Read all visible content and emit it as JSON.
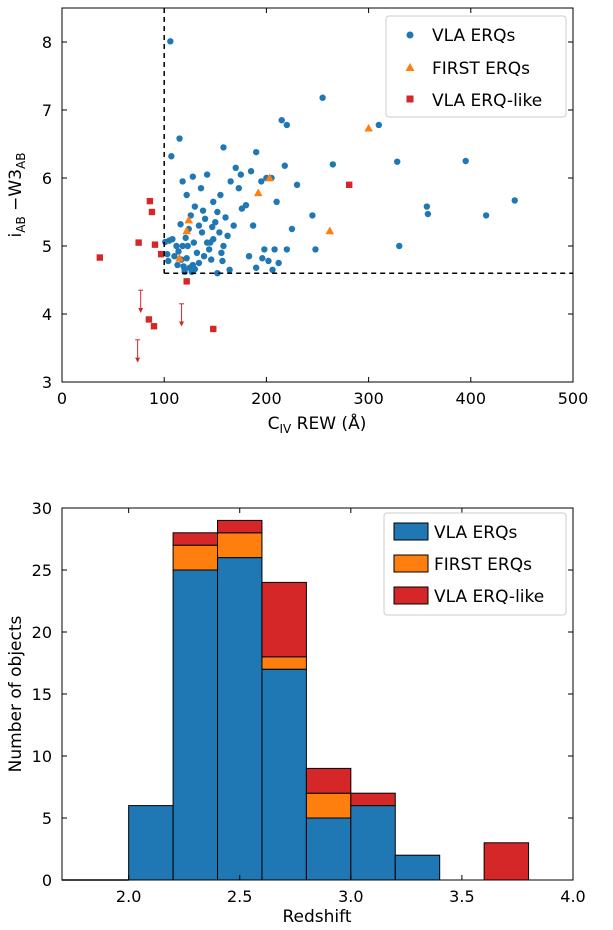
{
  "colors": {
    "vla": "#1f77b4",
    "first": "#ff7f0e",
    "erqlike": "#d62728",
    "cutoff": "#000000"
  },
  "top_legend": {
    "vla": "VLA ERQs",
    "first": "FIRST ERQs",
    "erqlike": "VLA ERQ-like"
  },
  "bottom_legend": {
    "vla": "VLA ERQs",
    "first": "FIRST ERQs",
    "erqlike": "VLA ERQ-like"
  },
  "chart_data": [
    {
      "type": "scatter",
      "xlabel": "C_IV REW (Å)",
      "ylabel": "i_AB − W3_AB",
      "xlim": [
        0,
        500
      ],
      "ylim": [
        3,
        8.5
      ],
      "x_ticks": [
        0,
        100,
        200,
        300,
        400,
        500
      ],
      "y_ticks": [
        3,
        4,
        5,
        6,
        7,
        8
      ],
      "grid": false,
      "legend_position": "top-right",
      "selection_cut": {
        "x_min": 100,
        "y_min": 4.6
      },
      "series": [
        {
          "name": "VLA ERQs",
          "marker": "circle",
          "color": "#1f77b4",
          "points": [
            [
              106,
              8.01
            ],
            [
              107,
              6.32
            ],
            [
              115,
              6.58
            ],
            [
              101,
              5.06
            ],
            [
              105,
              5.08
            ],
            [
              108,
              5.1
            ],
            [
              103,
              4.88
            ],
            [
              104,
              4.78
            ],
            [
              110,
              4.85
            ],
            [
              114,
              4.92
            ],
            [
              117,
              4.8
            ],
            [
              119,
              4.7
            ],
            [
              120,
              4.65
            ],
            [
              122,
              4.82
            ],
            [
              125,
              4.68
            ],
            [
              127,
              4.62
            ],
            [
              128,
              4.72
            ],
            [
              130,
              4.66
            ],
            [
              118,
              5.0
            ],
            [
              121,
              5.12
            ],
            [
              124,
              5.25
            ],
            [
              126,
              5.45
            ],
            [
              129,
              5.05
            ],
            [
              132,
              4.9
            ],
            [
              134,
              5.3
            ],
            [
              137,
              5.2
            ],
            [
              140,
              5.4
            ],
            [
              142,
              5.05
            ],
            [
              144,
              4.95
            ],
            [
              146,
              4.8
            ],
            [
              148,
              5.1
            ],
            [
              150,
              5.35
            ],
            [
              152,
              5.5
            ],
            [
              154,
              5.2
            ],
            [
              156,
              4.9
            ],
            [
              158,
              5.0
            ],
            [
              160,
              5.42
            ],
            [
              162,
              5.15
            ],
            [
              118,
              5.95
            ],
            [
              122,
              5.75
            ],
            [
              128,
              6.02
            ],
            [
              136,
              5.85
            ],
            [
              142,
              6.05
            ],
            [
              148,
              5.65
            ],
            [
              155,
              5.75
            ],
            [
              158,
              6.45
            ],
            [
              165,
              5.95
            ],
            [
              170,
              6.15
            ],
            [
              175,
              6.05
            ],
            [
              180,
              5.6
            ],
            [
              185,
              6.1
            ],
            [
              190,
              6.38
            ],
            [
              195,
              5.95
            ],
            [
              200,
              6.0
            ],
            [
              205,
              6.0
            ],
            [
              210,
              5.65
            ],
            [
              198,
              4.95
            ],
            [
              202,
              4.78
            ],
            [
              206,
              4.65
            ],
            [
              208,
              4.95
            ],
            [
              212,
              4.75
            ],
            [
              190,
              4.68
            ],
            [
              220,
              4.95
            ],
            [
              225,
              5.25
            ],
            [
              215,
              6.85
            ],
            [
              220,
              6.78
            ],
            [
              218,
              6.18
            ],
            [
              230,
              5.9
            ],
            [
              245,
              5.45
            ],
            [
              248,
              4.95
            ],
            [
              255,
              7.18
            ],
            [
              265,
              6.2
            ],
            [
              310,
              6.78
            ],
            [
              328,
              6.24
            ],
            [
              330,
              5.0
            ],
            [
              357,
              5.58
            ],
            [
              358,
              5.47
            ],
            [
              395,
              6.25
            ],
            [
              415,
              5.45
            ],
            [
              443,
              5.67
            ],
            [
              138,
              5.52
            ],
            [
              145,
              5.05
            ],
            [
              152,
              4.6
            ],
            [
              164,
              4.65
            ],
            [
              168,
              5.3
            ],
            [
              176,
              5.55
            ],
            [
              183,
              4.85
            ],
            [
              134,
              4.75
            ],
            [
              112,
              5.0
            ],
            [
              113,
              4.72
            ],
            [
              116,
              5.32
            ],
            [
              130,
              5.58
            ],
            [
              147,
              5.28
            ],
            [
              139,
              4.85
            ],
            [
              157,
              4.78
            ],
            [
              173,
              5.85
            ],
            [
              187,
              5.3
            ],
            [
              196,
              4.82
            ],
            [
              120,
              4.62
            ],
            [
              123,
              5.0
            ]
          ]
        },
        {
          "name": "FIRST ERQs",
          "marker": "triangle",
          "color": "#ff7f0e",
          "points": [
            [
              124,
              5.38
            ],
            [
              122,
              5.22
            ],
            [
              115,
              4.82
            ],
            [
              192,
              5.78
            ],
            [
              203,
              6.0
            ],
            [
              262,
              5.22
            ],
            [
              300,
              6.73
            ]
          ]
        },
        {
          "name": "VLA ERQ-like",
          "marker": "square",
          "color": "#d62728",
          "points": [
            [
              37,
              4.83
            ],
            [
              75,
              5.05
            ],
            [
              86,
              5.66
            ],
            [
              88,
              5.5
            ],
            [
              91,
              5.02
            ],
            [
              97,
              4.88
            ],
            [
              122,
              4.48
            ],
            [
              85,
              3.92
            ],
            [
              90,
              3.82
            ],
            [
              148,
              3.78
            ],
            [
              281,
              5.9
            ]
          ]
        }
      ],
      "upper_limits": [
        {
          "x": 77,
          "y_from": 4.35,
          "y_to": 4.03
        },
        {
          "x": 117,
          "y_from": 4.15,
          "y_to": 3.83
        },
        {
          "x": 74,
          "y_from": 3.62,
          "y_to": 3.3
        }
      ]
    },
    {
      "type": "bar",
      "histogram": "stacked",
      "xlabel": "Redshift",
      "ylabel": "Number of objects",
      "xlim": [
        1.7,
        4.0
      ],
      "ylim": [
        0,
        30
      ],
      "x_ticks": [
        2.0,
        2.5,
        3.0,
        3.5,
        4.0
      ],
      "y_ticks": [
        0,
        5,
        10,
        15,
        20,
        25,
        30
      ],
      "grid": false,
      "legend_position": "top-right",
      "bin_edges": [
        2.0,
        2.2,
        2.4,
        2.6,
        2.8,
        3.0,
        3.2,
        3.4,
        3.6,
        3.8
      ],
      "series": [
        {
          "name": "VLA ERQs",
          "color": "#1f77b4",
          "values": [
            6,
            25,
            26,
            17,
            5,
            6,
            2,
            0,
            0
          ]
        },
        {
          "name": "FIRST ERQs",
          "color": "#ff7f0e",
          "values": [
            0,
            2,
            2,
            1,
            2,
            0,
            0,
            0,
            0
          ]
        },
        {
          "name": "VLA ERQ-like",
          "color": "#d62728",
          "values": [
            0,
            1,
            1,
            6,
            2,
            1,
            0,
            0,
            3
          ]
        }
      ]
    }
  ]
}
